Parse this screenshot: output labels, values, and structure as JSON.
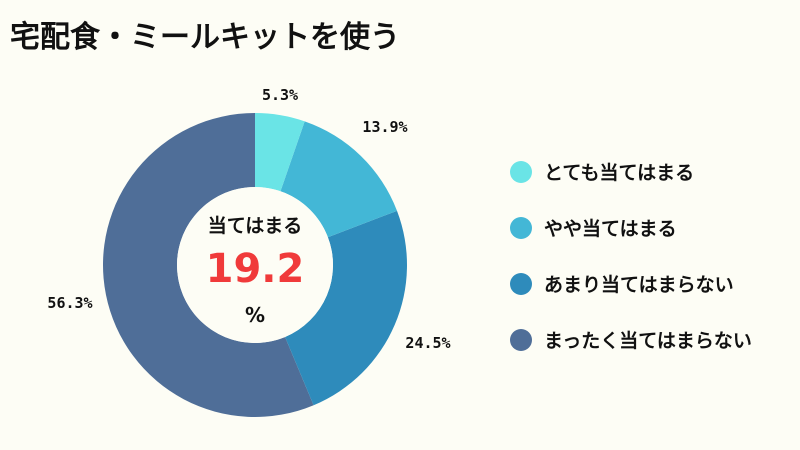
{
  "title": "宅配食・ミールキットを使う",
  "center": {
    "label": "当てはまる",
    "value": "19.2",
    "unit": "%",
    "value_color": "#f03a3a"
  },
  "chart_data": {
    "type": "pie",
    "donut": true,
    "categories": [
      "とても当てはまる",
      "やや当てはまる",
      "あまり当てはまらない",
      "まったく当てはまらない"
    ],
    "values": [
      5.3,
      13.9,
      24.5,
      56.3
    ],
    "labels": [
      "5.3%",
      "13.9%",
      "24.5%",
      "56.3%"
    ],
    "colors": [
      "#6ae4e6",
      "#43b7d6",
      "#2e8bbb",
      "#4f6e98"
    ],
    "legend": "right"
  }
}
